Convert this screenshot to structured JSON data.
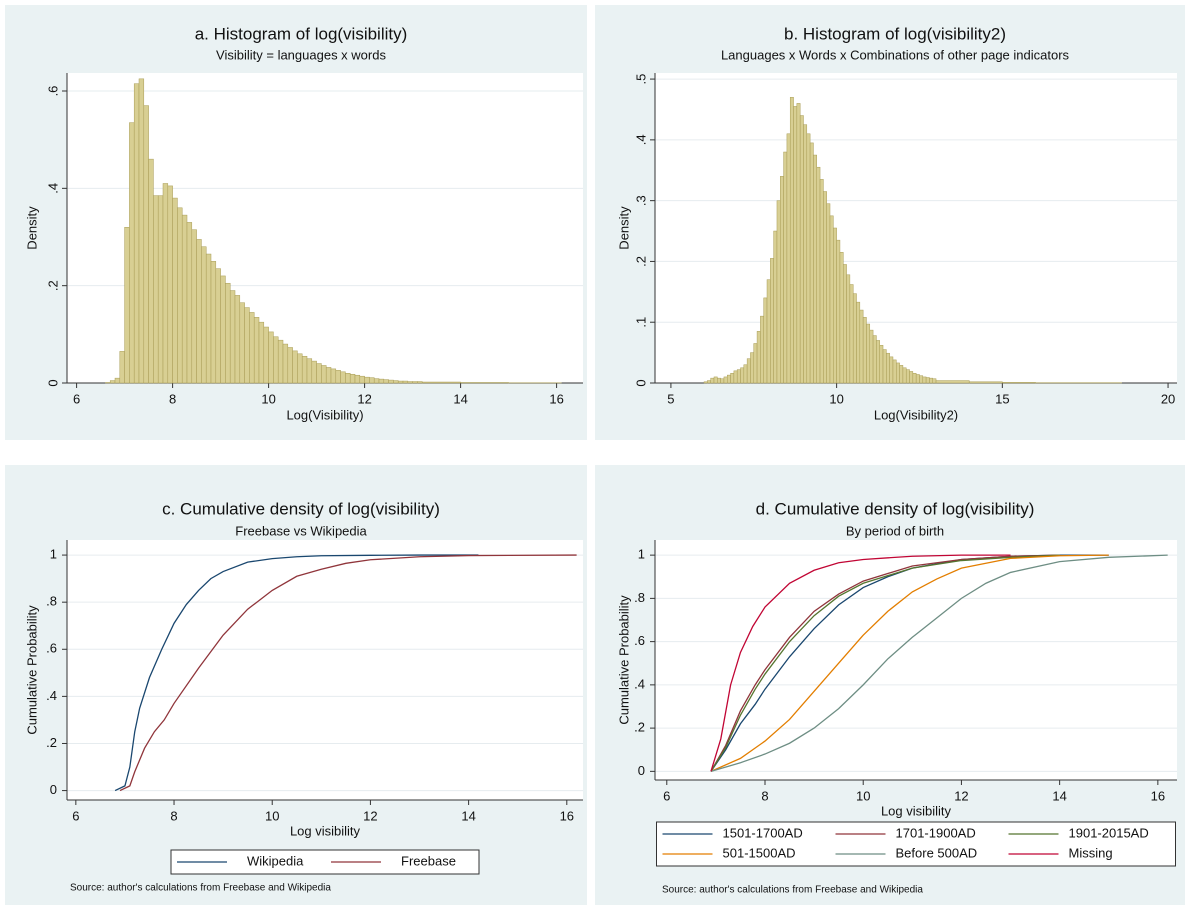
{
  "chart_data": [
    {
      "type": "histogram",
      "title": "a. Histogram of log(visibility)",
      "subtitle": "Visibility = languages x words",
      "xlabel": "Log(Visibility)",
      "ylabel": "Density",
      "color": "#d8cf93",
      "edgecolor": "#a89c55",
      "grid": true,
      "xlim": [
        5.8,
        16.55
      ],
      "xticks": [
        6,
        8,
        10,
        12,
        14,
        16
      ],
      "ylim": [
        0,
        0.637
      ],
      "yticks": [
        0,
        {
          "value": 0.2,
          "label": ".2"
        },
        {
          "value": 0.4,
          "label": ".4"
        },
        {
          "value": 0.6,
          "label": ".6"
        }
      ],
      "bins": [
        6.6,
        6.7,
        6.8,
        6.9,
        7.0,
        7.1,
        7.2,
        7.3,
        7.4,
        7.5,
        7.6,
        7.7,
        7.8,
        7.9,
        8.0,
        8.1,
        8.2,
        8.3,
        8.4,
        8.5,
        8.6,
        8.7,
        8.8,
        8.9,
        9.0,
        9.1,
        9.2,
        9.3,
        9.4,
        9.5,
        9.6,
        9.7,
        9.8,
        9.9,
        10.0,
        10.1,
        10.2,
        10.3,
        10.4,
        10.5,
        10.6,
        10.7,
        10.8,
        10.9,
        11.0,
        11.1,
        11.2,
        11.3,
        11.4,
        11.5,
        11.6,
        11.7,
        11.8,
        11.9,
        12.0,
        12.1,
        12.2,
        12.3,
        12.4,
        12.5,
        12.6,
        12.7,
        12.8,
        12.9,
        13.0,
        13.1,
        13.2,
        14,
        15,
        16.1
      ],
      "values": [
        0.001,
        0.005,
        0.01,
        0.065,
        0.32,
        0.535,
        0.615,
        0.625,
        0.57,
        0.46,
        0.385,
        0.385,
        0.41,
        0.405,
        0.38,
        0.36,
        0.345,
        0.33,
        0.315,
        0.295,
        0.28,
        0.265,
        0.25,
        0.235,
        0.22,
        0.205,
        0.19,
        0.18,
        0.165,
        0.155,
        0.145,
        0.135,
        0.125,
        0.115,
        0.105,
        0.095,
        0.088,
        0.08,
        0.073,
        0.066,
        0.06,
        0.055,
        0.05,
        0.045,
        0.04,
        0.036,
        0.032,
        0.029,
        0.026,
        0.023,
        0.02,
        0.018,
        0.016,
        0.014,
        0.012,
        0.011,
        0.009,
        0.008,
        0.007,
        0.006,
        0.005,
        0.004,
        0.004,
        0.003,
        0.003,
        0.003,
        0.002,
        0.001,
        0.0005
      ]
    },
    {
      "type": "histogram",
      "title": "b. Histogram of log(visibility2)",
      "subtitle": "Languages x Words x Combinations of other page indicators",
      "xlabel": "Log(Visibility2)",
      "ylabel": "Density",
      "color": "#d8cf93",
      "edgecolor": "#a89c55",
      "grid": true,
      "xlim": [
        4.52,
        20.27
      ],
      "xticks": [
        5,
        10,
        15,
        20
      ],
      "ylim": [
        0,
        0.51
      ],
      "yticks": [
        0,
        {
          "value": 0.1,
          "label": ".1"
        },
        {
          "value": 0.2,
          "label": ".2"
        },
        {
          "value": 0.3,
          "label": ".3"
        },
        {
          "value": 0.4,
          "label": ".4"
        },
        {
          "value": 0.5,
          "label": ".5"
        }
      ],
      "bins": [
        6.0,
        6.1,
        6.2,
        6.3,
        6.4,
        6.5,
        6.6,
        6.7,
        6.8,
        6.9,
        7.0,
        7.1,
        7.2,
        7.3,
        7.4,
        7.5,
        7.6,
        7.7,
        7.8,
        7.9,
        8.0,
        8.1,
        8.2,
        8.3,
        8.4,
        8.5,
        8.6,
        8.7,
        8.8,
        8.9,
        9.0,
        9.1,
        9.2,
        9.3,
        9.4,
        9.5,
        9.6,
        9.7,
        9.8,
        9.9,
        10.0,
        10.1,
        10.2,
        10.3,
        10.4,
        10.5,
        10.6,
        10.7,
        10.8,
        10.9,
        11.0,
        11.1,
        11.2,
        11.3,
        11.4,
        11.5,
        11.6,
        11.7,
        11.8,
        11.9,
        12.0,
        12.1,
        12.2,
        12.3,
        12.4,
        12.5,
        12.6,
        12.7,
        12.8,
        12.9,
        13.0,
        14,
        15,
        16,
        18.6
      ],
      "values": [
        0.002,
        0.004,
        0.008,
        0.01,
        0.008,
        0.007,
        0.01,
        0.013,
        0.016,
        0.02,
        0.022,
        0.025,
        0.03,
        0.04,
        0.05,
        0.065,
        0.085,
        0.11,
        0.14,
        0.17,
        0.205,
        0.25,
        0.3,
        0.34,
        0.38,
        0.41,
        0.47,
        0.455,
        0.46,
        0.44,
        0.425,
        0.41,
        0.395,
        0.375,
        0.355,
        0.335,
        0.315,
        0.295,
        0.275,
        0.255,
        0.235,
        0.215,
        0.195,
        0.178,
        0.162,
        0.147,
        0.133,
        0.12,
        0.108,
        0.097,
        0.087,
        0.078,
        0.07,
        0.062,
        0.055,
        0.049,
        0.043,
        0.038,
        0.033,
        0.029,
        0.025,
        0.022,
        0.019,
        0.016,
        0.014,
        0.012,
        0.01,
        0.009,
        0.008,
        0.007,
        0.004,
        0.002,
        0.001,
        0.0005
      ]
    },
    {
      "type": "line",
      "title": "c. Cumulative density of log(visibility)",
      "subtitle": "Freebase vs Wikipedia",
      "xlabel": "Log visibility",
      "ylabel": "Cumulative Probability",
      "legend": "bottom",
      "grid": true,
      "note": "Source: author's calculations from Freebase and Wikipedia",
      "xlim": [
        5.82,
        16.33
      ],
      "xticks": [
        6,
        8,
        10,
        12,
        14,
        16
      ],
      "ylim": [
        -0.04,
        1.064
      ],
      "yticks": [
        0,
        {
          "value": 0.2,
          "label": ".2"
        },
        {
          "value": 0.4,
          "label": ".4"
        },
        {
          "value": 0.6,
          "label": ".6"
        },
        {
          "value": 0.8,
          "label": ".8"
        },
        1
      ],
      "series": [
        {
          "name": "Wikipedia",
          "color": "#1a476f",
          "x": [
            6.8,
            7.0,
            7.1,
            7.2,
            7.3,
            7.5,
            7.75,
            8,
            8.25,
            8.5,
            8.75,
            9,
            9.5,
            10,
            10.5,
            11,
            12,
            13,
            14.2
          ],
          "values": [
            0,
            0.02,
            0.1,
            0.25,
            0.35,
            0.48,
            0.6,
            0.71,
            0.79,
            0.85,
            0.9,
            0.93,
            0.97,
            0.985,
            0.993,
            0.997,
            0.999,
            1,
            1
          ]
        },
        {
          "name": "Freebase",
          "color": "#90353b",
          "x": [
            6.9,
            7.1,
            7.2,
            7.4,
            7.6,
            7.8,
            8,
            8.5,
            9,
            9.5,
            10,
            10.5,
            11,
            11.5,
            12,
            13,
            14,
            16.2
          ],
          "values": [
            0,
            0.02,
            0.08,
            0.18,
            0.25,
            0.3,
            0.37,
            0.52,
            0.66,
            0.77,
            0.85,
            0.91,
            0.94,
            0.965,
            0.98,
            0.993,
            0.998,
            1
          ]
        }
      ]
    },
    {
      "type": "line",
      "title": "d. Cumulative density of log(visibility)",
      "subtitle": "By period of birth",
      "xlabel": "Log visibility",
      "ylabel": "Cumulative Probability",
      "legend": "bottom",
      "grid": true,
      "note": "Source: author's calculations from Freebase and Wikipedia",
      "xlim": [
        5.76,
        16.39
      ],
      "xticks": [
        6,
        8,
        10,
        12,
        14,
        16
      ],
      "ylim": [
        -0.04,
        1.07
      ],
      "yticks": [
        0,
        {
          "value": 0.2,
          "label": ".2"
        },
        {
          "value": 0.4,
          "label": ".4"
        },
        {
          "value": 0.6,
          "label": ".6"
        },
        {
          "value": 0.8,
          "label": ".8"
        },
        1
      ],
      "series": [
        {
          "name": "1501-1700AD",
          "color": "#1a476f",
          "x": [
            6.9,
            7.2,
            7.5,
            7.8,
            8,
            8.5,
            9,
            9.5,
            10,
            10.5,
            11,
            12,
            13,
            14,
            15
          ],
          "values": [
            0,
            0.1,
            0.22,
            0.31,
            0.38,
            0.53,
            0.66,
            0.77,
            0.85,
            0.9,
            0.94,
            0.98,
            0.995,
            1,
            1
          ]
        },
        {
          "name": "1701-1900AD",
          "color": "#90353b",
          "x": [
            6.9,
            7.2,
            7.5,
            7.8,
            8,
            8.5,
            9,
            9.5,
            10,
            11,
            12,
            13,
            14
          ],
          "values": [
            0,
            0.12,
            0.28,
            0.4,
            0.47,
            0.62,
            0.74,
            0.82,
            0.88,
            0.95,
            0.98,
            0.995,
            1
          ]
        },
        {
          "name": "1901-2015AD",
          "color": "#55752f",
          "x": [
            6.9,
            7.2,
            7.5,
            7.8,
            8,
            8.5,
            9,
            9.5,
            10,
            11,
            12,
            13,
            14
          ],
          "values": [
            0,
            0.11,
            0.26,
            0.38,
            0.45,
            0.6,
            0.72,
            0.81,
            0.87,
            0.94,
            0.975,
            0.99,
            1
          ]
        },
        {
          "name": "501-1500AD",
          "color": "#e37e00",
          "x": [
            6.9,
            7.5,
            8,
            8.5,
            9,
            9.5,
            10,
            10.5,
            11,
            11.5,
            12,
            13,
            14,
            15
          ],
          "values": [
            0,
            0.06,
            0.14,
            0.24,
            0.37,
            0.5,
            0.63,
            0.74,
            0.83,
            0.89,
            0.94,
            0.985,
            0.997,
            1
          ]
        },
        {
          "name": "Before 500AD",
          "color": "#6e8e84",
          "x": [
            6.9,
            7.5,
            8,
            8.5,
            9,
            9.5,
            10,
            10.5,
            11,
            11.5,
            12,
            12.5,
            13,
            14,
            15,
            16.2
          ],
          "values": [
            0,
            0.04,
            0.08,
            0.13,
            0.2,
            0.29,
            0.4,
            0.52,
            0.62,
            0.71,
            0.8,
            0.87,
            0.92,
            0.97,
            0.99,
            1
          ]
        },
        {
          "name": "Missing",
          "color": "#c10534",
          "x": [
            6.9,
            7.1,
            7.3,
            7.5,
            7.75,
            8,
            8.5,
            9,
            9.5,
            10,
            11,
            12,
            13
          ],
          "values": [
            0,
            0.15,
            0.4,
            0.55,
            0.67,
            0.76,
            0.87,
            0.93,
            0.965,
            0.98,
            0.995,
            1,
            1
          ]
        }
      ]
    }
  ]
}
